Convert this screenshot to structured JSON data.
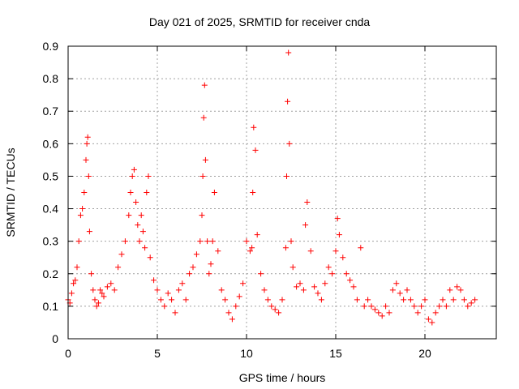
{
  "chart_data": {
    "type": "scatter",
    "title": "Day 021 of 2025, SRMTID for receiver cnda",
    "xlabel": "GPS time / hours",
    "ylabel": "SRMTID / TECUs",
    "xlim": [
      0,
      24
    ],
    "ylim": [
      0,
      0.9
    ],
    "x_ticks": [
      0,
      5,
      10,
      15,
      20
    ],
    "y_ticks": [
      0,
      0.1,
      0.2,
      0.3,
      0.4,
      0.5,
      0.6,
      0.7,
      0.8,
      0.9
    ],
    "x_tick_labels": [
      "0",
      "5",
      "10",
      "15",
      "20"
    ],
    "y_tick_labels": [
      "0",
      "0.1",
      "0.2",
      "0.3",
      "0.4",
      "0.5",
      "0.6",
      "0.7",
      "0.8",
      "0.9"
    ],
    "grid": true,
    "marker": "+",
    "color": "#ff0000",
    "series": [
      {
        "name": "SRMTID",
        "x": [
          0.0,
          0.1,
          0.2,
          0.3,
          0.4,
          0.5,
          0.6,
          0.7,
          0.8,
          0.9,
          1.0,
          1.05,
          1.1,
          1.15,
          1.2,
          1.3,
          1.4,
          1.5,
          1.6,
          1.7,
          1.8,
          1.9,
          2.0,
          2.2,
          2.4,
          2.6,
          2.8,
          3.0,
          3.2,
          3.4,
          3.5,
          3.6,
          3.7,
          3.8,
          3.9,
          4.0,
          4.1,
          4.2,
          4.3,
          4.4,
          4.5,
          4.6,
          4.8,
          5.0,
          5.2,
          5.4,
          5.6,
          5.8,
          6.0,
          6.2,
          6.4,
          6.6,
          6.8,
          7.0,
          7.2,
          7.4,
          7.5,
          7.55,
          7.6,
          7.65,
          7.7,
          7.8,
          7.9,
          8.0,
          8.1,
          8.2,
          8.4,
          8.6,
          8.8,
          9.0,
          9.2,
          9.4,
          9.6,
          9.8,
          10.0,
          10.2,
          10.3,
          10.35,
          10.4,
          10.5,
          10.6,
          10.8,
          11.0,
          11.2,
          11.4,
          11.6,
          11.8,
          12.0,
          12.2,
          12.25,
          12.3,
          12.35,
          12.4,
          12.5,
          12.6,
          12.8,
          13.0,
          13.2,
          13.3,
          13.4,
          13.6,
          13.8,
          14.0,
          14.2,
          14.4,
          14.6,
          14.8,
          15.0,
          15.1,
          15.2,
          15.4,
          15.6,
          15.8,
          16.0,
          16.2,
          16.4,
          16.6,
          16.8,
          17.0,
          17.2,
          17.4,
          17.6,
          17.8,
          18.0,
          18.2,
          18.4,
          18.6,
          18.8,
          19.0,
          19.2,
          19.4,
          19.6,
          19.8,
          20.0,
          20.2,
          20.4,
          20.6,
          20.8,
          21.0,
          21.2,
          21.4,
          21.6,
          21.8,
          22.0,
          22.2,
          22.4,
          22.6,
          22.8
        ],
        "y": [
          0.12,
          0.11,
          0.14,
          0.17,
          0.18,
          0.22,
          0.3,
          0.38,
          0.4,
          0.45,
          0.55,
          0.6,
          0.62,
          0.5,
          0.33,
          0.2,
          0.15,
          0.12,
          0.1,
          0.11,
          0.15,
          0.14,
          0.13,
          0.16,
          0.17,
          0.15,
          0.22,
          0.26,
          0.3,
          0.38,
          0.45,
          0.5,
          0.52,
          0.42,
          0.35,
          0.3,
          0.38,
          0.33,
          0.28,
          0.45,
          0.5,
          0.25,
          0.18,
          0.15,
          0.12,
          0.1,
          0.14,
          0.12,
          0.08,
          0.15,
          0.17,
          0.12,
          0.2,
          0.22,
          0.26,
          0.3,
          0.38,
          0.5,
          0.68,
          0.78,
          0.55,
          0.3,
          0.2,
          0.23,
          0.3,
          0.45,
          0.27,
          0.15,
          0.12,
          0.08,
          0.06,
          0.1,
          0.13,
          0.17,
          0.3,
          0.27,
          0.28,
          0.45,
          0.65,
          0.58,
          0.32,
          0.2,
          0.15,
          0.12,
          0.1,
          0.09,
          0.08,
          0.12,
          0.28,
          0.5,
          0.73,
          0.88,
          0.6,
          0.3,
          0.22,
          0.16,
          0.17,
          0.15,
          0.35,
          0.42,
          0.27,
          0.16,
          0.14,
          0.12,
          0.17,
          0.22,
          0.2,
          0.27,
          0.37,
          0.32,
          0.25,
          0.2,
          0.18,
          0.16,
          0.12,
          0.28,
          0.1,
          0.12,
          0.1,
          0.09,
          0.08,
          0.07,
          0.1,
          0.08,
          0.15,
          0.17,
          0.14,
          0.12,
          0.15,
          0.12,
          0.1,
          0.08,
          0.1,
          0.12,
          0.06,
          0.05,
          0.08,
          0.1,
          0.12,
          0.1,
          0.15,
          0.12,
          0.16,
          0.15,
          0.12,
          0.1,
          0.11,
          0.12
        ]
      }
    ]
  }
}
